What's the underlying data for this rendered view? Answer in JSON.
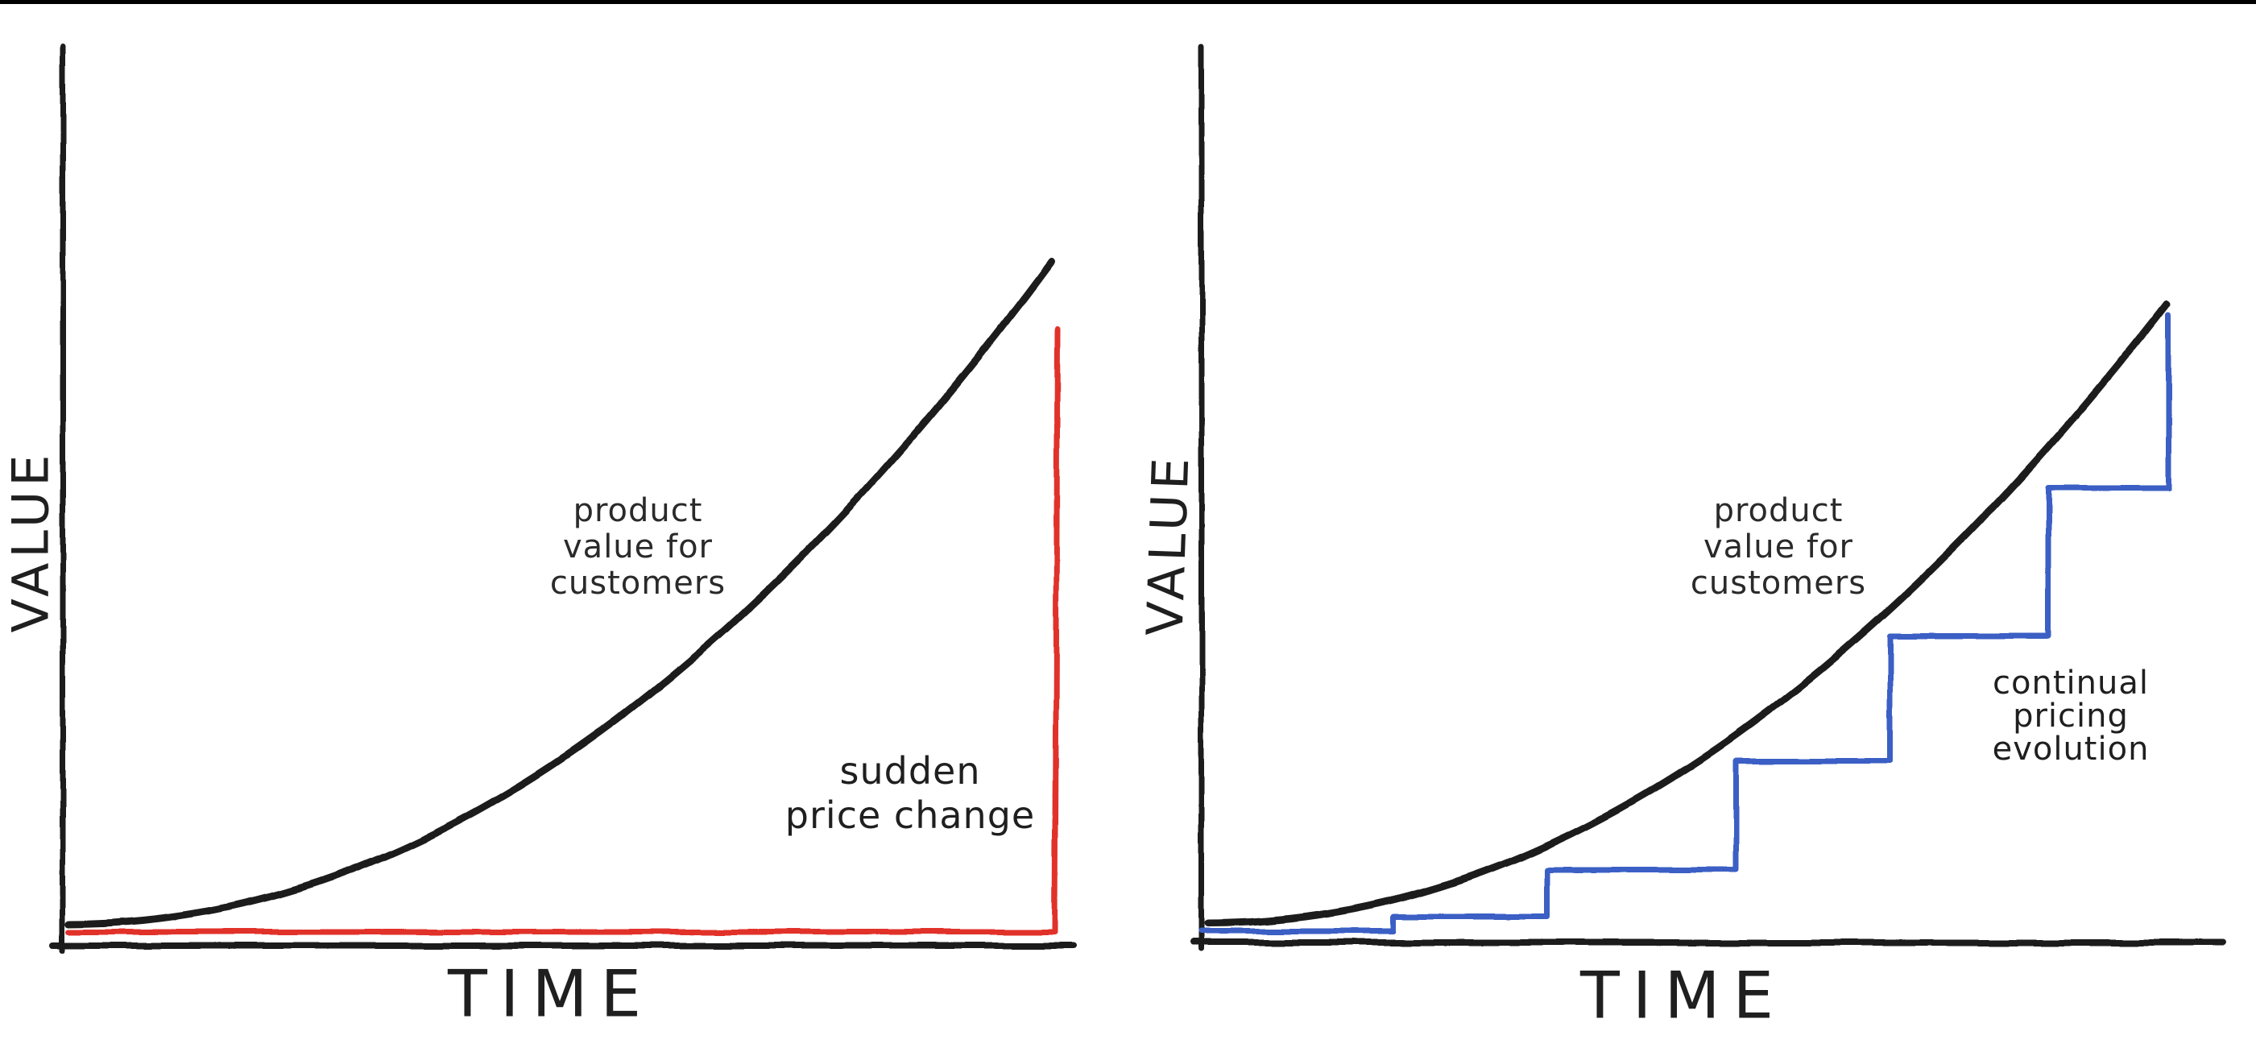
{
  "page": {
    "background": "#ffffff"
  },
  "colors": {
    "ink": "#1f1f1f",
    "red": "#e1302a",
    "blue": "#3b5fc4"
  },
  "charts": [
    {
      "id": "sudden",
      "value_axis_label": "VALUE",
      "time_axis_label": "TIME",
      "curve_label_lines": [
        "product",
        "value for",
        "customers"
      ],
      "price_label_lines": [
        "sudden",
        "price change"
      ],
      "accent": "red",
      "render": {
        "stroke_axis": 7,
        "stroke_curve": 9,
        "stroke_price": 7,
        "y_axis": {
          "x": 78,
          "y1": 57,
          "y2": 1180
        },
        "x_axis": {
          "x1": 66,
          "x2": 1333,
          "y": 1174
        },
        "curve": {
          "start": [
            86,
            1147
          ],
          "control": [
            700,
            1147
          ],
          "end": [
            1305,
            325
          ]
        },
        "price_path": [
          [
            86,
            1157
          ],
          [
            1310,
            1157
          ],
          [
            1313,
            408
          ]
        ]
      }
    },
    {
      "id": "continual",
      "value_axis_label": "VALUE",
      "time_axis_label": "TIME",
      "curve_label_lines": [
        "product",
        "value for",
        "customers"
      ],
      "price_label_lines": [
        "continual",
        "pricing",
        "evolution"
      ],
      "accent": "blue",
      "render": {
        "stroke_axis": 7,
        "stroke_curve": 9,
        "stroke_price": 7,
        "y_axis": {
          "x": 1492,
          "y1": 57,
          "y2": 1178
        },
        "x_axis": {
          "x1": 1482,
          "x2": 2760,
          "y": 1170
        },
        "curve": {
          "start": [
            1500,
            1146
          ],
          "control": [
            2094,
            1146
          ],
          "end": [
            2690,
            377
          ]
        },
        "price_path": [
          [
            1492,
            1156
          ],
          [
            1730,
            1156
          ],
          [
            1730,
            1138
          ],
          [
            1921,
            1138
          ],
          [
            1921,
            1080
          ],
          [
            2156,
            1080
          ],
          [
            2156,
            945
          ],
          [
            2347,
            945
          ],
          [
            2347,
            790
          ],
          [
            2543,
            790
          ],
          [
            2543,
            606
          ],
          [
            2692,
            606
          ],
          [
            2692,
            390
          ]
        ]
      }
    }
  ],
  "chart_data": [
    {
      "type": "line",
      "title": "",
      "xlabel": "TIME",
      "ylabel": "VALUE",
      "axis_ticks": "none",
      "grid": false,
      "legend_position": "none",
      "annotations": [
        "product value for customers",
        "sudden price change"
      ],
      "series": [
        {
          "name": "product value for customers",
          "color": "#1f1f1f",
          "style": "smooth",
          "points": [
            [
              0,
              0.3
            ],
            [
              2,
              0.7
            ],
            [
              4,
              1.7
            ],
            [
              6,
              3.5
            ],
            [
              8,
              6.4
            ],
            [
              10,
              10.0
            ]
          ]
        },
        {
          "name": "sudden price change",
          "color": "#e1302a",
          "style": "step",
          "points": [
            [
              0,
              0.2
            ],
            [
              9.97,
              0.2
            ],
            [
              10,
              9.0
            ]
          ]
        }
      ],
      "xlim": [
        0,
        10
      ],
      "ylim": [
        0,
        11
      ]
    },
    {
      "type": "line",
      "title": "",
      "xlabel": "TIME",
      "ylabel": "VALUE",
      "axis_ticks": "none",
      "grid": false,
      "legend_position": "none",
      "annotations": [
        "product value for customers",
        "continual pricing evolution"
      ],
      "series": [
        {
          "name": "product value for customers",
          "color": "#1f1f1f",
          "style": "smooth",
          "points": [
            [
              0,
              0.3
            ],
            [
              2,
              0.7
            ],
            [
              4,
              1.7
            ],
            [
              6,
              3.5
            ],
            [
              8,
              6.4
            ],
            [
              10,
              10.0
            ]
          ]
        },
        {
          "name": "continual pricing evolution",
          "color": "#3b5fc4",
          "style": "step",
          "points": [
            [
              0,
              0.2
            ],
            [
              1.95,
              0.2
            ],
            [
              1.95,
              0.4
            ],
            [
              3.55,
              0.4
            ],
            [
              3.55,
              1.1
            ],
            [
              5.5,
              1.1
            ],
            [
              5.5,
              2.8
            ],
            [
              7.1,
              2.8
            ],
            [
              7.1,
              4.8
            ],
            [
              8.8,
              4.8
            ],
            [
              8.8,
              7.1
            ],
            [
              10,
              7.1
            ],
            [
              10,
              9.8
            ]
          ]
        }
      ],
      "xlim": [
        0,
        10
      ],
      "ylim": [
        0,
        11
      ]
    }
  ]
}
